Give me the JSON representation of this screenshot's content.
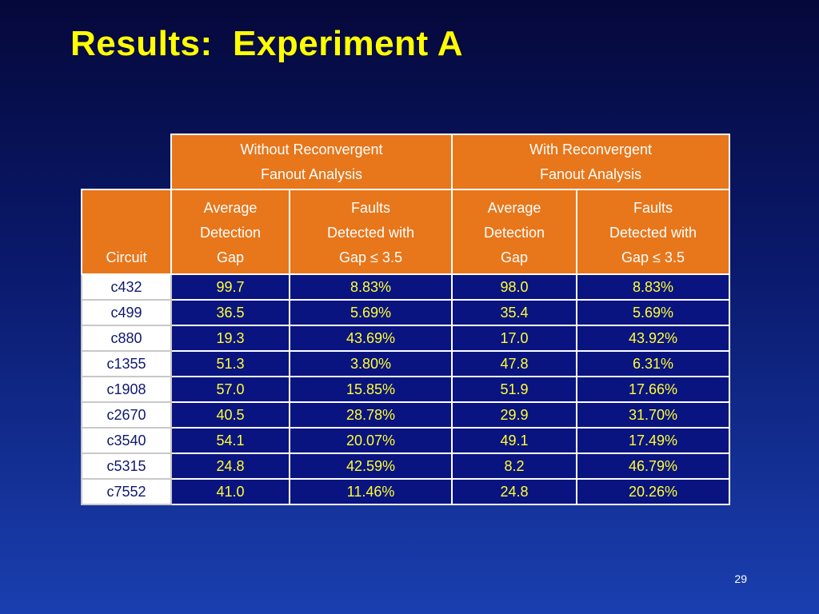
{
  "slide": {
    "title": "Results:  Experiment A",
    "page_number": "29"
  },
  "table": {
    "group_headers": [
      "Without Reconvergent\nFanout Analysis",
      "With Reconvergent\nFanout Analysis"
    ],
    "column_headers": [
      "Circuit",
      "Average\nDetection\nGap",
      "Faults\nDetected with\nGap ≤ 3.5",
      "Average\nDetection\nGap",
      "Faults\nDetected with\nGap ≤ 3.5"
    ],
    "rows": [
      [
        "c432",
        "99.7",
        "8.83%",
        "98.0",
        "8.83%"
      ],
      [
        "c499",
        "36.5",
        "5.69%",
        "35.4",
        "5.69%"
      ],
      [
        "c880",
        "19.3",
        "43.69%",
        "17.0",
        "43.92%"
      ],
      [
        "c1355",
        "51.3",
        "3.80%",
        "47.8",
        "6.31%"
      ],
      [
        "c1908",
        "57.0",
        "15.85%",
        "51.9",
        "17.66%"
      ],
      [
        "c2670",
        "40.5",
        "28.78%",
        "29.9",
        "31.70%"
      ],
      [
        "c3540",
        "54.1",
        "20.07%",
        "49.1",
        "17.49%"
      ],
      [
        "c5315",
        "24.8",
        "42.59%",
        "8.2",
        "46.79%"
      ],
      [
        "c7552",
        "41.0",
        "11.46%",
        "24.8",
        "20.26%"
      ]
    ]
  },
  "colors": {
    "title": "#ffff00",
    "header_fill": "#e8761a",
    "value_text": "#ffff33",
    "circuit_text": "#101870"
  }
}
